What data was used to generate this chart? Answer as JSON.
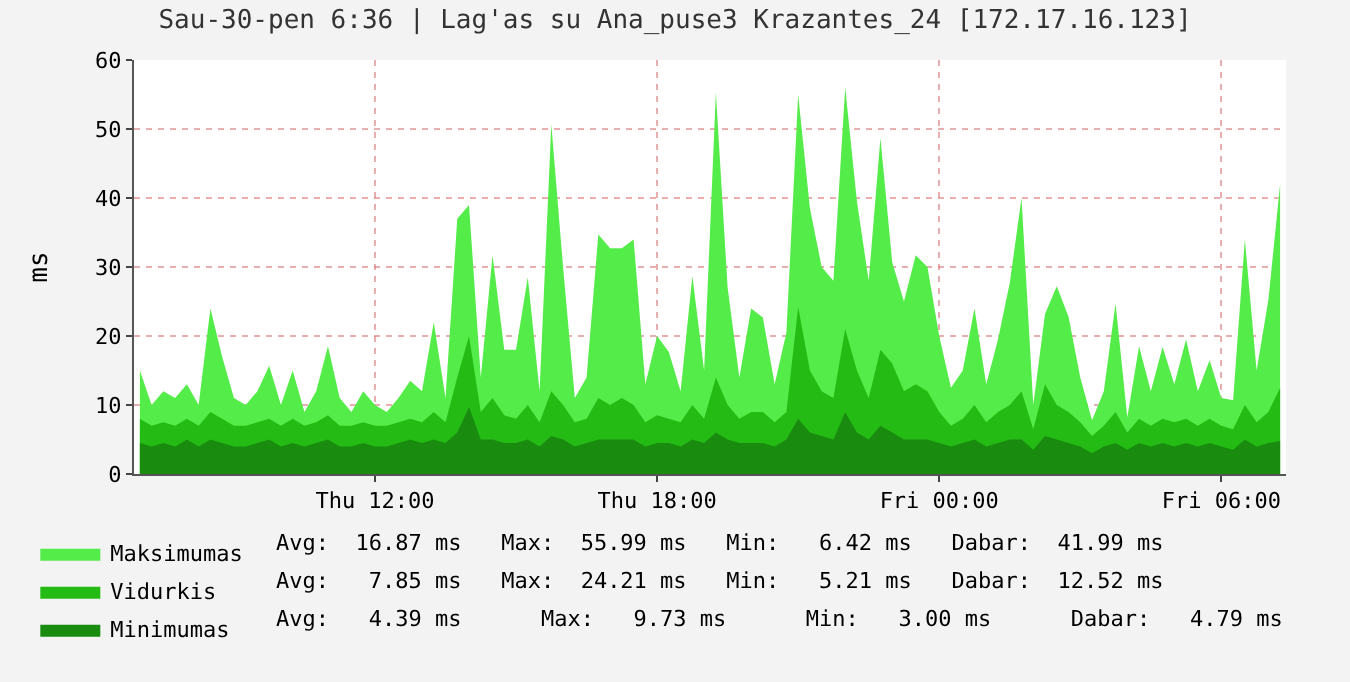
{
  "chart_data": {
    "type": "area",
    "title": "Sau-30-pen 6:36 | Lag'as su Ana_puse3 Krazantes_24 [172.17.16.123]",
    "ylabel": "ms",
    "categories": [
      null,
      null,
      null,
      null,
      null,
      null,
      null,
      null,
      null,
      null,
      null,
      null,
      null,
      null,
      null,
      null,
      null,
      null,
      null,
      null,
      "Thu 12:00",
      null,
      null,
      null,
      null,
      null,
      null,
      null,
      null,
      null,
      null,
      null,
      null,
      null,
      null,
      null,
      null,
      null,
      null,
      null,
      null,
      null,
      null,
      null,
      "Thu 18:00",
      null,
      null,
      null,
      null,
      null,
      null,
      null,
      null,
      null,
      null,
      null,
      null,
      null,
      null,
      null,
      null,
      null,
      null,
      null,
      null,
      null,
      null,
      null,
      "Fri 00:00",
      null,
      null,
      null,
      null,
      null,
      null,
      null,
      null,
      null,
      null,
      null,
      null,
      null,
      null,
      null,
      null,
      null,
      null,
      null,
      null,
      null,
      null,
      null,
      "Fri 06:00",
      null,
      null,
      null,
      null,
      null
    ],
    "series": [
      {
        "name": "Maksimumas",
        "color": "#54ec48",
        "values": [
          15,
          10,
          12,
          11,
          13,
          10,
          24,
          17,
          11,
          10,
          12,
          15.7,
          10,
          15,
          9,
          12,
          18.5,
          11,
          9,
          12,
          10,
          9,
          11,
          13.5,
          12,
          22,
          11,
          37,
          39,
          14,
          31.7,
          18,
          18,
          28.5,
          12,
          50.7,
          30,
          11,
          14,
          34.7,
          32.7,
          32.7,
          34,
          13,
          20,
          17.7,
          12,
          28.7,
          15,
          55.3,
          27,
          14,
          24,
          22.7,
          13,
          20.5,
          55,
          38.5,
          30,
          28,
          56,
          39.5,
          28,
          48.7,
          30.7,
          25,
          31.7,
          30,
          20,
          12.5,
          15,
          24,
          13,
          19.5,
          27.7,
          40,
          10,
          23.2,
          27.2,
          22.8,
          14,
          7.8,
          12,
          24.7,
          8.2,
          18.5,
          12,
          18.4,
          13,
          19.5,
          12,
          16.5,
          11,
          10.7,
          34,
          15,
          25.2,
          42
        ]
      },
      {
        "name": "Vidurkis",
        "color": "#24bc14",
        "values": [
          8,
          7,
          7.5,
          7,
          8,
          7,
          9,
          8,
          7,
          7,
          7.5,
          8,
          7,
          8,
          7,
          7.5,
          8.5,
          7,
          7,
          7.5,
          7,
          7,
          7.5,
          8,
          7.5,
          9,
          7.5,
          14,
          20,
          9,
          11,
          8.5,
          8,
          10,
          7.5,
          12,
          10,
          7.5,
          8,
          11,
          10,
          11,
          10,
          7.5,
          8.5,
          8,
          7.5,
          10,
          8,
          14,
          10,
          8,
          9,
          9,
          7.5,
          9,
          24.2,
          15,
          12,
          11,
          21,
          15,
          11,
          18,
          16,
          12,
          13,
          12,
          9,
          7,
          8,
          10,
          7.5,
          9,
          10,
          12,
          6.5,
          13,
          10,
          9,
          7.5,
          5.5,
          7,
          9,
          6,
          8,
          7,
          8,
          7.5,
          8,
          7,
          8,
          7,
          6.5,
          10,
          7.5,
          9,
          12.5
        ]
      },
      {
        "name": "Minimumas",
        "color": "#198c10",
        "values": [
          4.5,
          4,
          4.5,
          4,
          5,
          4,
          5,
          4.5,
          4,
          4,
          4.5,
          5,
          4,
          4.5,
          4,
          4.5,
          5,
          4,
          4,
          4.5,
          4,
          4,
          4.5,
          5,
          4.5,
          5,
          4.5,
          6,
          9.7,
          5,
          5,
          4.5,
          4.5,
          5,
          4,
          5.5,
          5,
          4,
          4.5,
          5,
          5,
          5,
          5,
          4,
          4.5,
          4.5,
          4,
          5,
          4.5,
          6,
          5,
          4.5,
          4.5,
          4.5,
          4,
          5,
          8,
          6,
          5.5,
          5,
          9,
          6,
          5,
          7,
          6,
          5,
          5,
          5,
          4.5,
          4,
          4.5,
          5,
          4,
          4.5,
          5,
          5,
          3.5,
          5.5,
          5,
          4.5,
          4,
          3,
          4,
          4.5,
          3.5,
          4.5,
          4,
          4.5,
          4,
          4.5,
          4,
          4.5,
          4,
          3.5,
          5,
          4,
          4.5,
          4.8
        ]
      }
    ],
    "ylim": [
      0,
      60
    ],
    "yticks": [
      0,
      10,
      20,
      30,
      40,
      50,
      60
    ],
    "grid": true,
    "legend": "bottom left",
    "annotations": [
      "Avg:  16.87 ms   Max:  55.99 ms   Min:   6.42 ms   Dabar:  41.99 ms",
      "Avg:   7.85 ms   Max:  24.21 ms   Min:   5.21 ms   Dabar:  12.52 ms",
      "Avg:   4.39 ms      Max:   9.73 ms      Min:   3.00 ms      Dabar:   4.79 ms"
    ]
  }
}
